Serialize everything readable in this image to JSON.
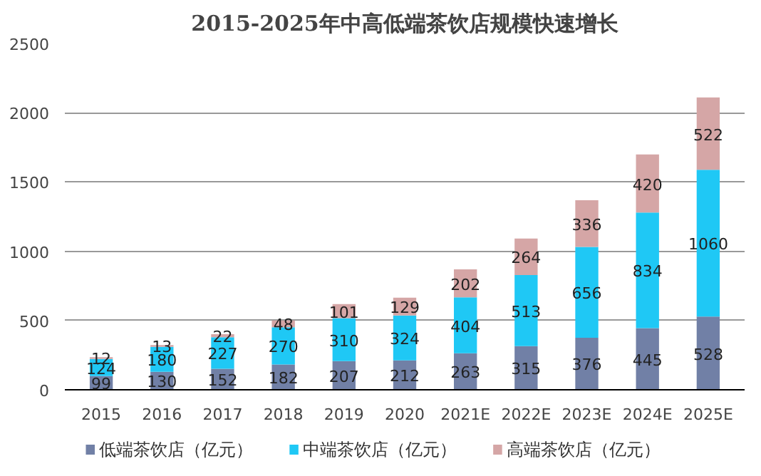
{
  "chart_data": {
    "type": "bar",
    "title": "2015-2025年中高低端茶饮店规模快速增长",
    "categories": [
      "2015",
      "2016",
      "2017",
      "2018",
      "2019",
      "2020",
      "2021E",
      "2022E",
      "2023E",
      "2024E",
      "2025E"
    ],
    "stacked": true,
    "data_labels": true,
    "grid": "y",
    "legend": "bottom",
    "ylim": [
      0,
      2500
    ],
    "yticks": [
      0,
      500,
      1000,
      1500,
      2000,
      2500
    ],
    "series": [
      {
        "name": "低端茶饮店（亿元）",
        "color": "#7180a6",
        "values": [
          99,
          130,
          152,
          182,
          207,
          212,
          263,
          315,
          376,
          445,
          528
        ]
      },
      {
        "name": "中端茶饮店（亿元）",
        "color": "#1fc8f5",
        "values": [
          124,
          180,
          227,
          270,
          310,
          324,
          404,
          513,
          656,
          834,
          1060
        ]
      },
      {
        "name": "高端茶饮店（亿元）",
        "color": "#d5a6a6",
        "values": [
          12,
          13,
          22,
          48,
          101,
          129,
          202,
          264,
          336,
          420,
          522
        ]
      }
    ]
  }
}
